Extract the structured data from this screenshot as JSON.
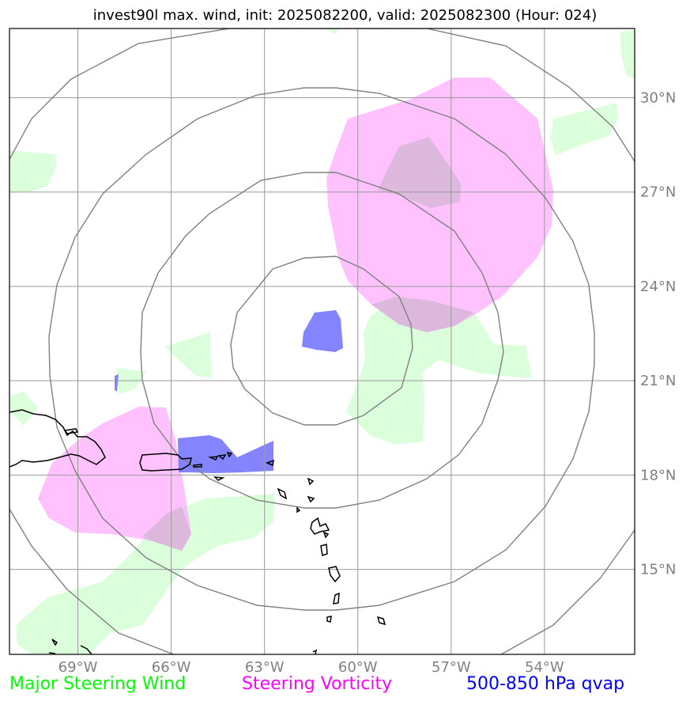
{
  "title": "invest90l max. wind, init: 2025082200, valid: 2025082300 (Hour: 024)",
  "map": {
    "lon_range": [
      -71.2,
      -51.1
    ],
    "lat_range": [
      12.3,
      32.2
    ],
    "lat_ticks": [
      {
        "value": 30,
        "label": "30°N"
      },
      {
        "value": 27,
        "label": "27°N"
      },
      {
        "value": 24,
        "label": "24°N"
      },
      {
        "value": 21,
        "label": "21°N"
      },
      {
        "value": 18,
        "label": "18°N"
      },
      {
        "value": 15,
        "label": "15°N"
      }
    ],
    "lon_ticks": [
      {
        "value": -69,
        "label": "69°W"
      },
      {
        "value": -66,
        "label": "66°W"
      },
      {
        "value": -63,
        "label": "63°W"
      },
      {
        "value": -60,
        "label": "60°W"
      },
      {
        "value": -57,
        "label": "57°W"
      },
      {
        "value": -54,
        "label": "54°W"
      }
    ],
    "range_rings_center": {
      "lon": -61.2,
      "lat": 22.2
    },
    "colors": {
      "wind": "#ccffcc",
      "vorticity": "#ffaaff",
      "qvap": "#7777ff",
      "grid": "#999999",
      "rings": "#808080",
      "coast": "#000000"
    }
  },
  "legend": {
    "wind": {
      "label": "Major Steering Wind",
      "color": "#00ff00"
    },
    "vorticity": {
      "label": "Steering Vorticity",
      "color": "#ff00ff"
    },
    "qvap": {
      "label": "500-850 hPa qvap",
      "color": "#0000ff"
    }
  }
}
